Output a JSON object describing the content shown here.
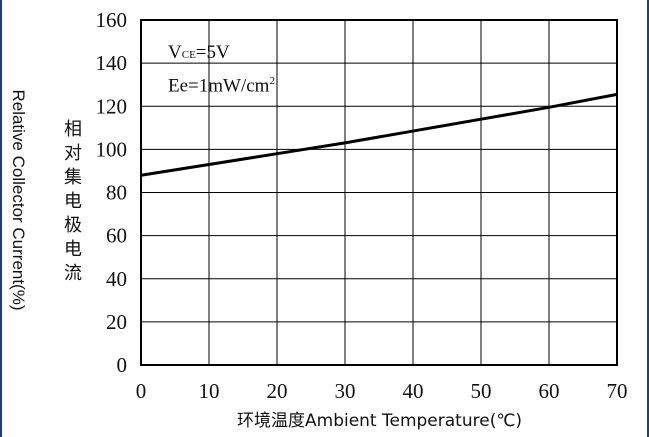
{
  "chart_data": {
    "type": "line",
    "x": [
      0,
      10,
      20,
      30,
      40,
      50,
      60,
      70
    ],
    "series": [
      {
        "values": [
          88,
          93,
          98,
          103,
          108.5,
          114,
          119.5,
          125.5
        ]
      }
    ],
    "xlim": [
      0,
      70
    ],
    "ylim": [
      0,
      160
    ],
    "x_ticks": [
      "0",
      "10",
      "20",
      "30",
      "40",
      "50",
      "60",
      "70"
    ],
    "y_ticks": [
      "0",
      "20",
      "40",
      "60",
      "80",
      "100",
      "120",
      "140",
      "160"
    ],
    "xlabel": "环境温度Ambient Temperature(℃)",
    "ylabel": "Relative Collector Current(%)",
    "ylabel_cn": "相对集电极电流",
    "annotation": {
      "line1_prefix": "V",
      "line1_sub": "CE",
      "line1_suffix": "=5V",
      "line2_prefix": "Ee=1mW/cm",
      "line2_sup": "2"
    },
    "grid": true,
    "colors": {
      "line": "#000000",
      "grid": "#000000",
      "frame": "#1f3a8a"
    }
  }
}
